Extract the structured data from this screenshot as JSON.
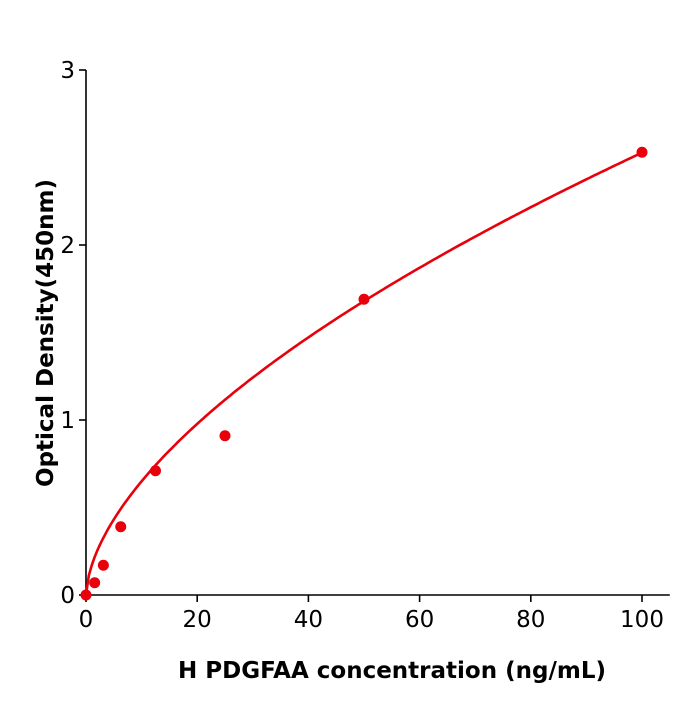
{
  "chart_data": {
    "type": "scatter",
    "title": "",
    "xlabel": "H  PDGFAA concentration (ng/mL)",
    "ylabel": "Optical Density(450nm)",
    "xlim": [
      0,
      105
    ],
    "ylim": [
      0,
      3
    ],
    "xticks": [
      "0",
      "20",
      "40",
      "60",
      "80",
      "100"
    ],
    "yticks": [
      "0",
      "1",
      "2",
      "3"
    ],
    "grid": false,
    "legend": "none",
    "color": "#e8000b",
    "series": [
      {
        "x": [
          0,
          1.56,
          3.125,
          6.25,
          12.5,
          25,
          50,
          100
        ],
        "y": [
          0.0,
          0.07,
          0.17,
          0.39,
          0.71,
          0.91,
          1.69,
          2.53
        ],
        "fit": "curve"
      }
    ]
  }
}
